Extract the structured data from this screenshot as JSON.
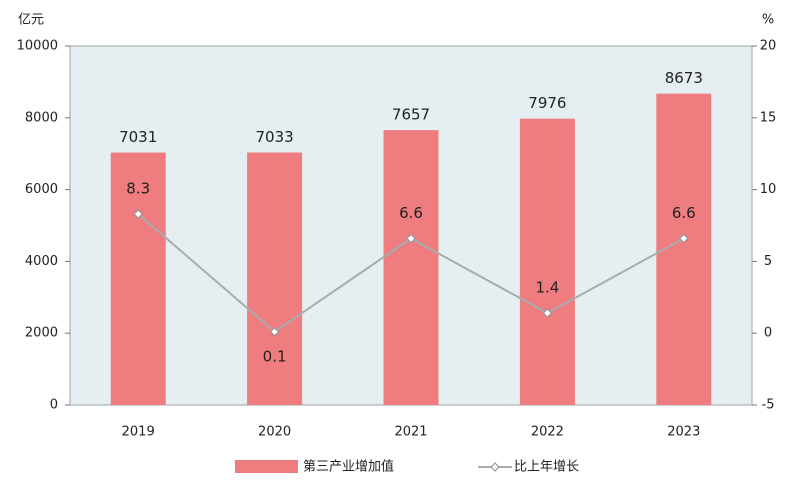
{
  "chart_data": {
    "type": "bar",
    "y_label": "亿元",
    "y2_label": "%",
    "categories": [
      "2019",
      "2020",
      "2021",
      "2022",
      "2023"
    ],
    "series": [
      {
        "name": "第三产业增加值",
        "color": "#ef7d80",
        "values": [
          7031,
          7033,
          7657,
          7976,
          8673
        ]
      },
      {
        "name": "比上年增长",
        "type": "line",
        "axis": "y2",
        "color": "#a7acae",
        "values": [
          8.3,
          0.1,
          6.6,
          1.4,
          6.6
        ]
      }
    ],
    "ylim": [
      0,
      10000
    ],
    "yticks": [
      0,
      2000,
      4000,
      6000,
      8000,
      10000
    ],
    "y2lim": [
      -5,
      20
    ],
    "y2ticks": [
      -5,
      0,
      5,
      10,
      15,
      20
    ]
  }
}
